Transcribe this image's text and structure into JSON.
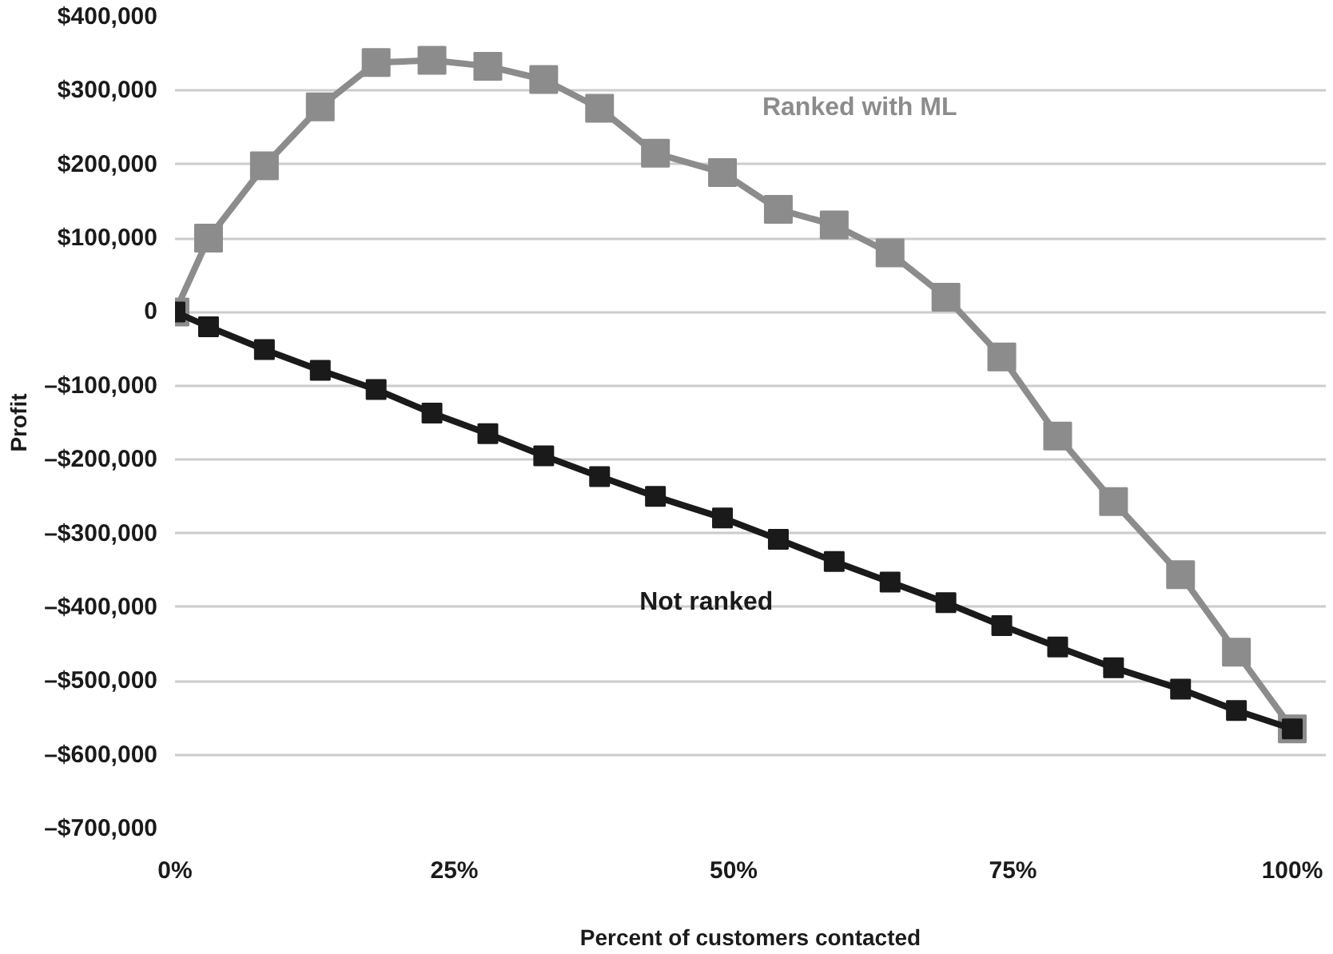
{
  "chart_data": {
    "type": "line",
    "xlabel": "Percent of customers contacted",
    "ylabel": "Profit",
    "x": [
      0,
      3,
      8,
      13,
      18,
      23,
      28,
      33,
      38,
      43,
      49,
      54,
      59,
      64,
      69,
      74,
      79,
      84,
      90,
      95,
      100
    ],
    "series": [
      {
        "name": "Ranked with ML",
        "color": "#8c8c8c",
        "values": [
          0,
          100000,
          198000,
          278000,
          338000,
          341000,
          333000,
          315000,
          276000,
          215000,
          189000,
          139000,
          118000,
          80000,
          20000,
          -61000,
          -168000,
          -257000,
          -356000,
          -461000,
          -565000
        ]
      },
      {
        "name": "Not ranked",
        "color": "#1a1a1a",
        "values": [
          0,
          -20000,
          -51000,
          -79000,
          -105000,
          -137000,
          -165000,
          -195000,
          -223000,
          -250000,
          -279000,
          -308000,
          -338000,
          -366000,
          -394000,
          -425000,
          -454000,
          -482000,
          -511000,
          -540000,
          -565000
        ]
      }
    ],
    "xlim": [
      0,
      103
    ],
    "ylim": [
      -700000,
      400000
    ],
    "xticks": [
      {
        "value": 0,
        "label": "0%"
      },
      {
        "value": 25,
        "label": "25%"
      },
      {
        "value": 50,
        "label": "50%"
      },
      {
        "value": 75,
        "label": "75%"
      },
      {
        "value": 100,
        "label": "100%"
      }
    ],
    "yticks": [
      {
        "value": 400000,
        "label": "$400,000"
      },
      {
        "value": 300000,
        "label": "$300,000"
      },
      {
        "value": 200000,
        "label": "$200,000"
      },
      {
        "value": 100000,
        "label": "$100,000"
      },
      0,
      {
        "value": -100000,
        "label": "–$100,000"
      },
      {
        "value": -200000,
        "label": "–$200,000"
      },
      {
        "value": -300000,
        "label": "–$300,000"
      },
      {
        "value": -400000,
        "label": "–$400,000"
      },
      {
        "value": -500000,
        "label": "–$500,000"
      },
      {
        "value": -600000,
        "label": "–$600,000"
      },
      {
        "value": -700000,
        "label": "–$700,000"
      }
    ],
    "grid": "y",
    "marker": "square",
    "line_style": "solid",
    "legend": false
  }
}
